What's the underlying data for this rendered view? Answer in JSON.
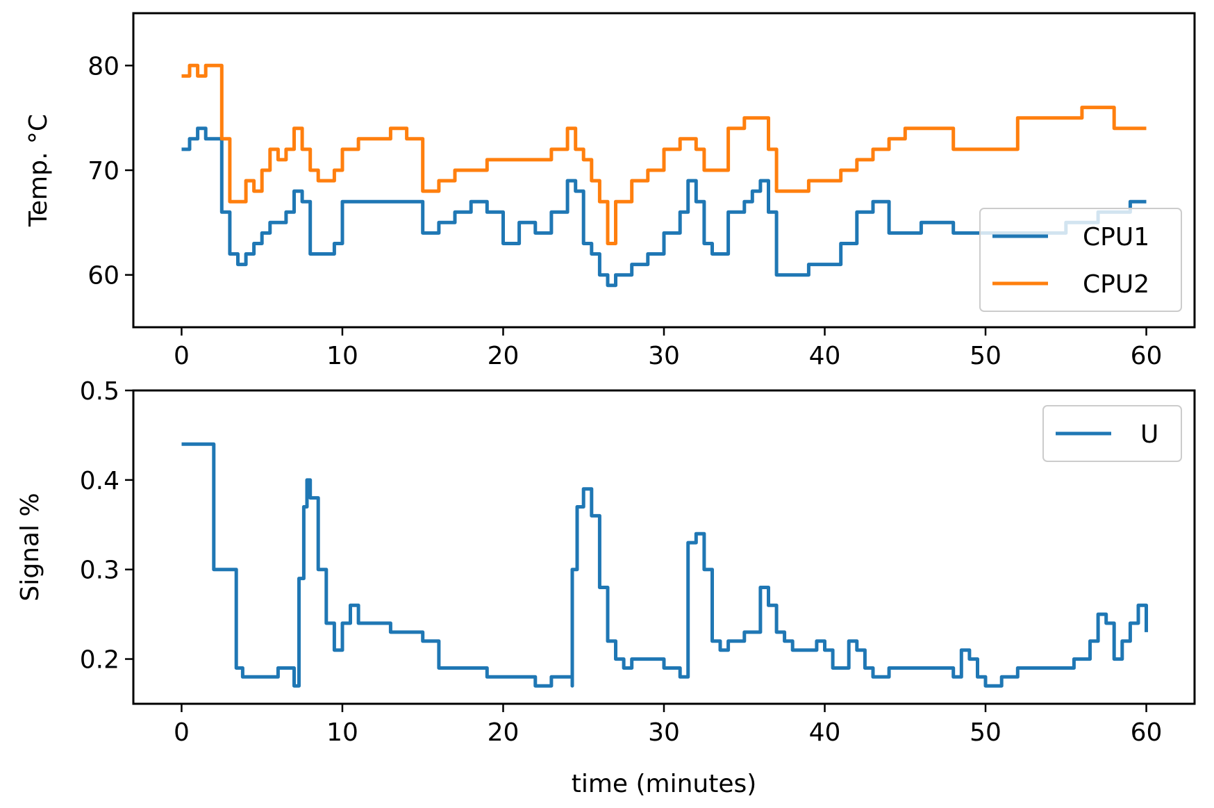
{
  "chart_data": [
    {
      "type": "line",
      "xlabel": "",
      "ylabel": "Temp. °C",
      "xlim": [
        -3,
        63
      ],
      "ylim": [
        55,
        85
      ],
      "xticks": [
        0,
        10,
        20,
        30,
        40,
        50,
        60
      ],
      "yticks": [
        60,
        70,
        80
      ],
      "legend": "bottom-right",
      "series": [
        {
          "name": "CPU1",
          "color": "#1f77b4",
          "x": [
            0,
            0.5,
            1,
            1.5,
            2,
            2.5,
            3,
            3.5,
            4,
            4.5,
            5,
            5.5,
            6,
            6.5,
            7,
            7.5,
            8,
            8.5,
            9,
            9.5,
            10,
            11,
            12,
            13,
            14,
            15,
            16,
            17,
            18,
            19,
            20,
            21,
            22,
            23,
            24,
            24.5,
            25,
            25.5,
            26,
            26.5,
            27,
            28,
            29,
            30,
            31,
            31.5,
            32,
            32.5,
            33,
            34,
            35,
            35.5,
            36,
            36.5,
            37,
            38,
            39,
            40,
            41,
            42,
            43,
            44,
            45,
            46,
            47,
            48,
            49,
            50,
            51,
            52,
            53,
            54,
            55,
            56,
            57,
            58,
            59,
            60
          ],
          "y": [
            72,
            73,
            74,
            73,
            73,
            66,
            62,
            61,
            62,
            63,
            64,
            65,
            65,
            66,
            68,
            67,
            62,
            62,
            62,
            63,
            67,
            67,
            67,
            67,
            67,
            64,
            65,
            66,
            67,
            66,
            63,
            65,
            64,
            66,
            69,
            68,
            63,
            62,
            60,
            59,
            60,
            61,
            62,
            64,
            66,
            69,
            67,
            63,
            62,
            66,
            67,
            68,
            69,
            66,
            60,
            60,
            61,
            61,
            63,
            66,
            67,
            64,
            64,
            65,
            65,
            64,
            64,
            64,
            64,
            64,
            64,
            64,
            65,
            65,
            66,
            66,
            67,
            67
          ]
        },
        {
          "name": "CPU2",
          "color": "#ff7f0e",
          "x": [
            0,
            0.5,
            1,
            1.5,
            2,
            2.5,
            3,
            3.5,
            4,
            4.5,
            5,
            5.5,
            6,
            6.5,
            7,
            7.5,
            8,
            8.5,
            9,
            9.5,
            10,
            11,
            12,
            13,
            14,
            15,
            16,
            17,
            18,
            19,
            20,
            21,
            22,
            23,
            24,
            24.5,
            25,
            25.5,
            26,
            26.5,
            27,
            28,
            29,
            30,
            31,
            31.5,
            32,
            32.5,
            33,
            34,
            35,
            35.5,
            36,
            36.5,
            37,
            38,
            39,
            40,
            41,
            42,
            43,
            44,
            45,
            46,
            47,
            48,
            49,
            50,
            51,
            52,
            53,
            54,
            55,
            56,
            57,
            58,
            59,
            60
          ],
          "y": [
            79,
            80,
            79,
            80,
            80,
            73,
            67,
            67,
            69,
            68,
            70,
            72,
            71,
            72,
            74,
            72,
            70,
            69,
            69,
            70,
            72,
            73,
            73,
            74,
            73,
            68,
            69,
            70,
            70,
            71,
            71,
            71,
            71,
            72,
            74,
            72,
            71,
            69,
            67,
            63,
            67,
            69,
            70,
            72,
            73,
            73,
            72,
            70,
            70,
            74,
            75,
            75,
            75,
            72,
            68,
            68,
            69,
            69,
            70,
            71,
            72,
            73,
            74,
            74,
            74,
            72,
            72,
            72,
            72,
            75,
            75,
            75,
            75,
            76,
            76,
            74,
            74,
            74
          ]
        }
      ]
    },
    {
      "type": "line",
      "xlabel": "time (minutes)",
      "ylabel": "Signal %",
      "xlim": [
        -3,
        63
      ],
      "ylim": [
        0.15,
        0.5
      ],
      "xticks": [
        0,
        10,
        20,
        30,
        40,
        50,
        60
      ],
      "yticks": [
        0.2,
        0.3,
        0.4,
        0.5
      ],
      "legend": "top-right",
      "series": [
        {
          "name": "U",
          "color": "#1f77b4",
          "x": [
            0,
            2,
            2,
            3.4,
            3.4,
            3.8,
            3.8,
            6,
            6,
            7,
            7,
            7.3,
            7.3,
            7.6,
            7.8,
            8,
            8.5,
            9,
            9.5,
            10,
            10.5,
            11,
            12,
            13,
            14,
            15,
            16,
            17,
            18,
            19,
            20,
            21,
            22,
            23,
            24,
            24.3,
            24.3,
            24.6,
            25,
            25.5,
            26,
            26.5,
            27,
            27.5,
            28,
            29,
            30,
            31,
            31.5,
            31.5,
            32,
            32.5,
            33,
            33.5,
            34,
            35,
            36,
            36.5,
            37,
            37.5,
            38,
            39,
            39.5,
            40,
            40.5,
            41,
            41.5,
            42,
            42.5,
            43,
            44,
            45,
            46,
            47,
            48,
            48.5,
            49,
            49.5,
            50,
            51,
            52,
            53,
            54,
            55,
            55.5,
            56,
            56.5,
            57,
            57.5,
            58,
            58.5,
            59,
            59.5,
            60
          ],
          "y": [
            0.44,
            0.44,
            0.3,
            0.3,
            0.19,
            0.19,
            0.18,
            0.18,
            0.19,
            0.19,
            0.17,
            0.17,
            0.29,
            0.37,
            0.4,
            0.38,
            0.3,
            0.24,
            0.21,
            0.24,
            0.26,
            0.24,
            0.24,
            0.23,
            0.23,
            0.22,
            0.19,
            0.19,
            0.19,
            0.18,
            0.18,
            0.18,
            0.17,
            0.18,
            0.18,
            0.17,
            0.3,
            0.37,
            0.39,
            0.36,
            0.28,
            0.22,
            0.2,
            0.19,
            0.2,
            0.2,
            0.19,
            0.18,
            0.18,
            0.33,
            0.34,
            0.3,
            0.22,
            0.21,
            0.22,
            0.23,
            0.28,
            0.26,
            0.23,
            0.22,
            0.21,
            0.21,
            0.22,
            0.21,
            0.19,
            0.19,
            0.22,
            0.21,
            0.19,
            0.18,
            0.19,
            0.19,
            0.19,
            0.19,
            0.18,
            0.21,
            0.2,
            0.18,
            0.17,
            0.18,
            0.19,
            0.19,
            0.19,
            0.19,
            0.2,
            0.2,
            0.22,
            0.25,
            0.24,
            0.2,
            0.22,
            0.24,
            0.26,
            0.23
          ]
        }
      ]
    }
  ]
}
